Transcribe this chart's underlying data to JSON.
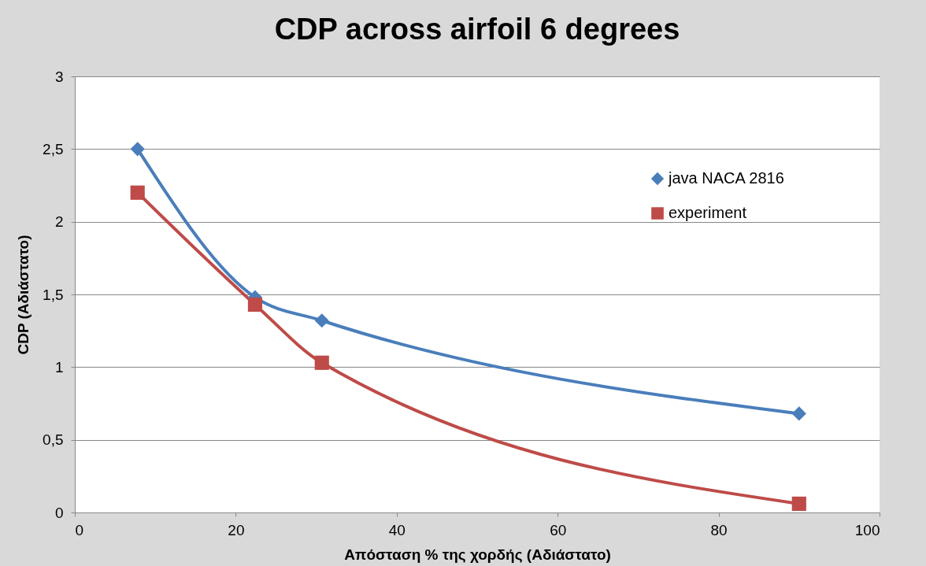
{
  "chart_data": {
    "type": "line",
    "title": "CDP across airfoil  6 degrees",
    "xlabel": "Απόσταση % της χορδής (Αδιάστατο)",
    "ylabel": "CDP (Αδιάστατο)",
    "x": [
      7.8,
      22.4,
      30.7,
      90
    ],
    "series": [
      {
        "name": "java NACA 2816",
        "color": "#4a7ebb",
        "marker": "diamond",
        "values": [
          2.5,
          1.48,
          1.32,
          0.68
        ]
      },
      {
        "name": "experiment",
        "color": "#be4b48",
        "marker": "square",
        "values": [
          2.2,
          1.43,
          1.03,
          0.06
        ]
      }
    ],
    "xlim": [
      0,
      100
    ],
    "xticks": [
      0,
      20,
      40,
      60,
      80,
      100
    ],
    "ylim": [
      0,
      3
    ],
    "yticks": [
      0,
      {
        "value": 0.5,
        "label": "0,5"
      },
      1,
      {
        "value": 1.5,
        "label": "1,5"
      },
      2,
      {
        "value": 2.5,
        "label": "2,5"
      },
      3
    ],
    "grid": "y",
    "legend": "top right",
    "line_style": "solid"
  }
}
